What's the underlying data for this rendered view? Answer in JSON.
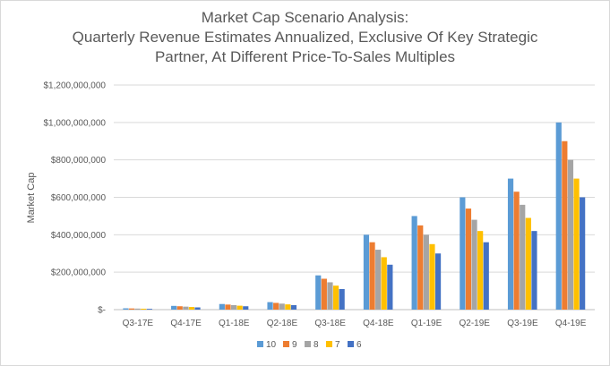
{
  "chart_data": {
    "type": "bar",
    "title_lines": [
      "Market Cap Scenario Analysis:",
      "Quarterly Revenue Estimates Annualized, Exclusive Of Key Strategic",
      "Partner, At Different Price-To-Sales Multiples"
    ],
    "xlabel": "",
    "ylabel": "Market Cap",
    "ylim": [
      0,
      1200000000
    ],
    "yticks": [
      0,
      200000000,
      400000000,
      600000000,
      800000000,
      1000000000,
      1200000000
    ],
    "ytick_labels": [
      "$-",
      "$200,000,000",
      "$400,000,000",
      "$600,000,000",
      "$800,000,000",
      "$1,000,000,000",
      "$1,200,000,000"
    ],
    "grid": true,
    "legend_position": "bottom",
    "categories": [
      "Q3-17E",
      "Q4-17E",
      "Q1-18E",
      "Q2-18E",
      "Q3-18E",
      "Q4-18E",
      "Q1-19E",
      "Q2-19E",
      "Q3-19E",
      "Q4-19E"
    ],
    "series": [
      {
        "name": "10",
        "color": "#5b9bd5",
        "values": [
          7000000,
          20000000,
          30000000,
          40000000,
          183000000,
          400000000,
          500000000,
          600000000,
          700000000,
          1000000000
        ]
      },
      {
        "name": "9",
        "color": "#ed7d31",
        "values": [
          6300000,
          18000000,
          27000000,
          36000000,
          165000000,
          360000000,
          450000000,
          540000000,
          630000000,
          900000000
        ]
      },
      {
        "name": "8",
        "color": "#a5a5a5",
        "values": [
          5600000,
          16000000,
          24000000,
          32000000,
          146000000,
          320000000,
          400000000,
          480000000,
          560000000,
          800000000
        ]
      },
      {
        "name": "7",
        "color": "#ffc000",
        "values": [
          4900000,
          14000000,
          21000000,
          28000000,
          128000000,
          280000000,
          350000000,
          420000000,
          490000000,
          700000000
        ]
      },
      {
        "name": "6",
        "color": "#4472c4",
        "values": [
          4200000,
          12000000,
          18000000,
          24000000,
          110000000,
          240000000,
          300000000,
          360000000,
          420000000,
          600000000
        ]
      }
    ]
  }
}
